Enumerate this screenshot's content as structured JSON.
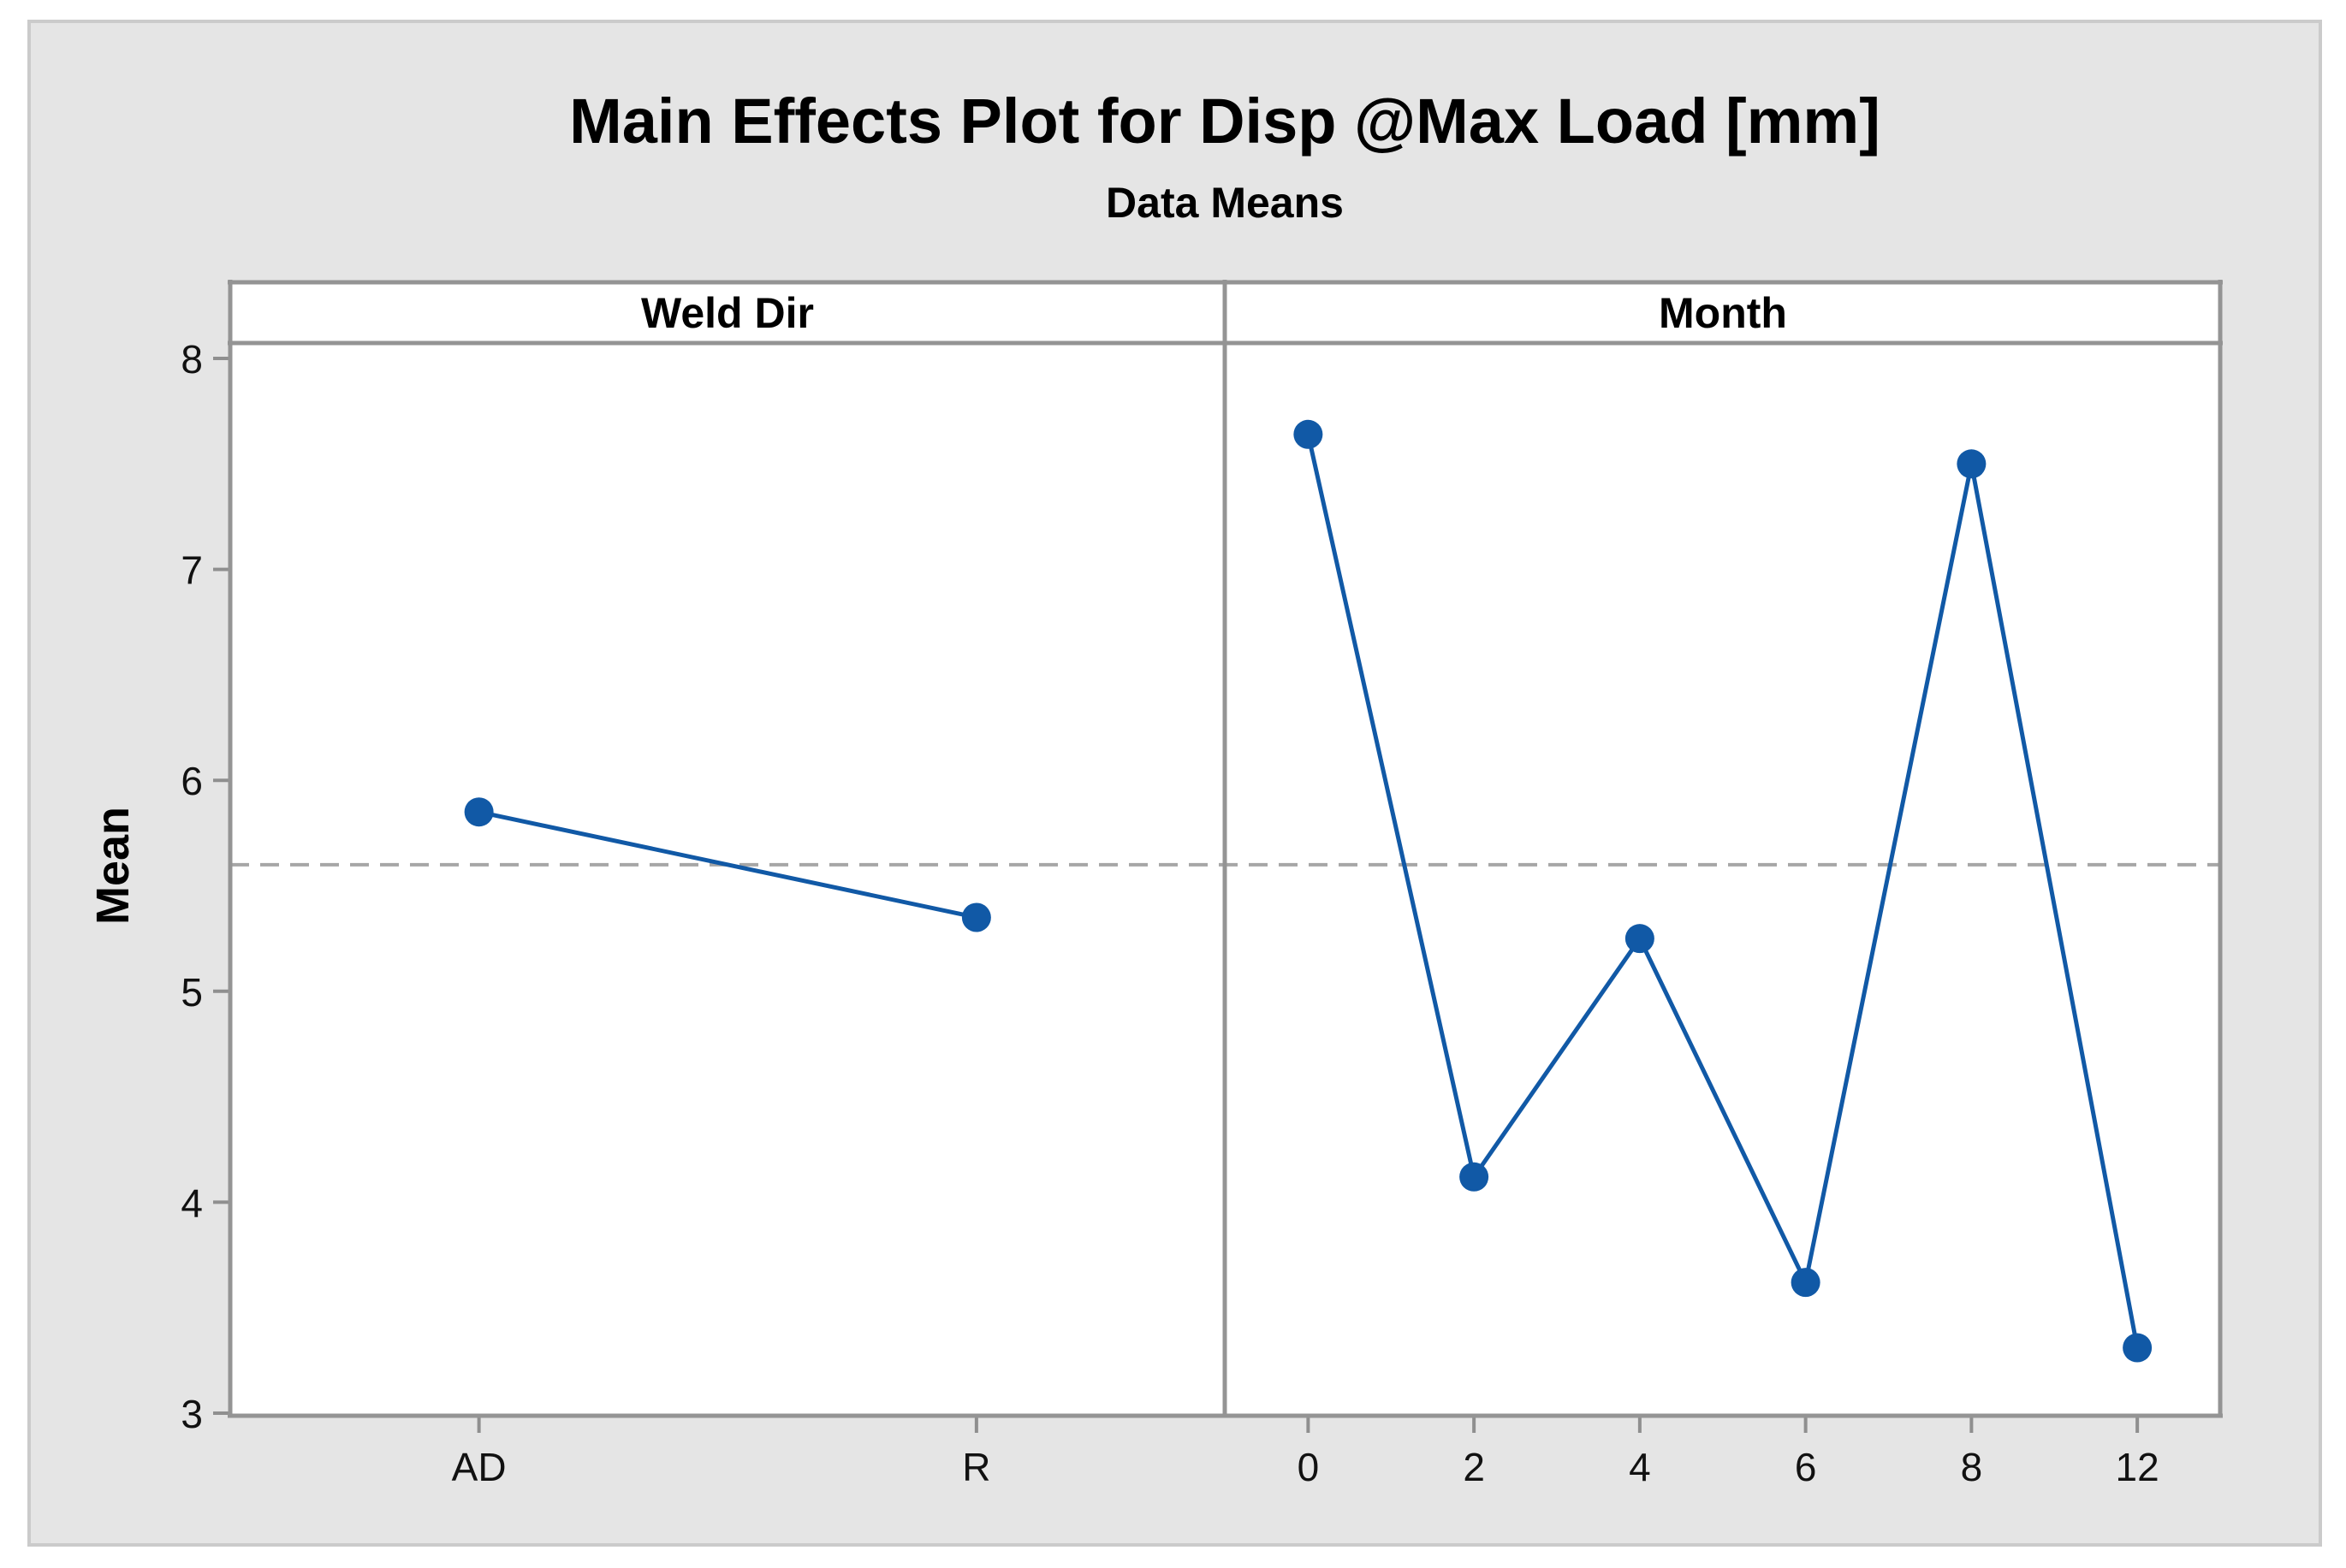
{
  "chart_data": {
    "type": "line",
    "title": "Main Effects Plot for Disp @Max Load [mm]",
    "subtitle": "Data Means",
    "ylabel": "Mean",
    "ylim": [
      3,
      8
    ],
    "y_ticks": [
      8,
      7,
      6,
      5,
      4,
      3
    ],
    "reference_mean": 5.6,
    "grid": "off",
    "legend": "none",
    "layout": "two side-by-side panels sharing one y axis, paneled headers on top",
    "panels": [
      {
        "label": "Weld Dir",
        "categories": [
          "AD",
          "R"
        ],
        "values": [
          5.85,
          5.35
        ]
      },
      {
        "label": "Month",
        "categories": [
          "0",
          "2",
          "4",
          "6",
          "8",
          "12"
        ],
        "values": [
          7.64,
          4.12,
          5.25,
          3.62,
          7.5,
          3.31
        ]
      }
    ],
    "colors": {
      "series": "#1159A6",
      "reference_line": "#A6A6A6",
      "frame": "#949494",
      "tick": "#8F8F8F",
      "canvas_bg": "#E5E5E5",
      "canvas_border": "#CBCBCB",
      "plot_bg": "#FFFFFF",
      "text": "#000000"
    }
  }
}
